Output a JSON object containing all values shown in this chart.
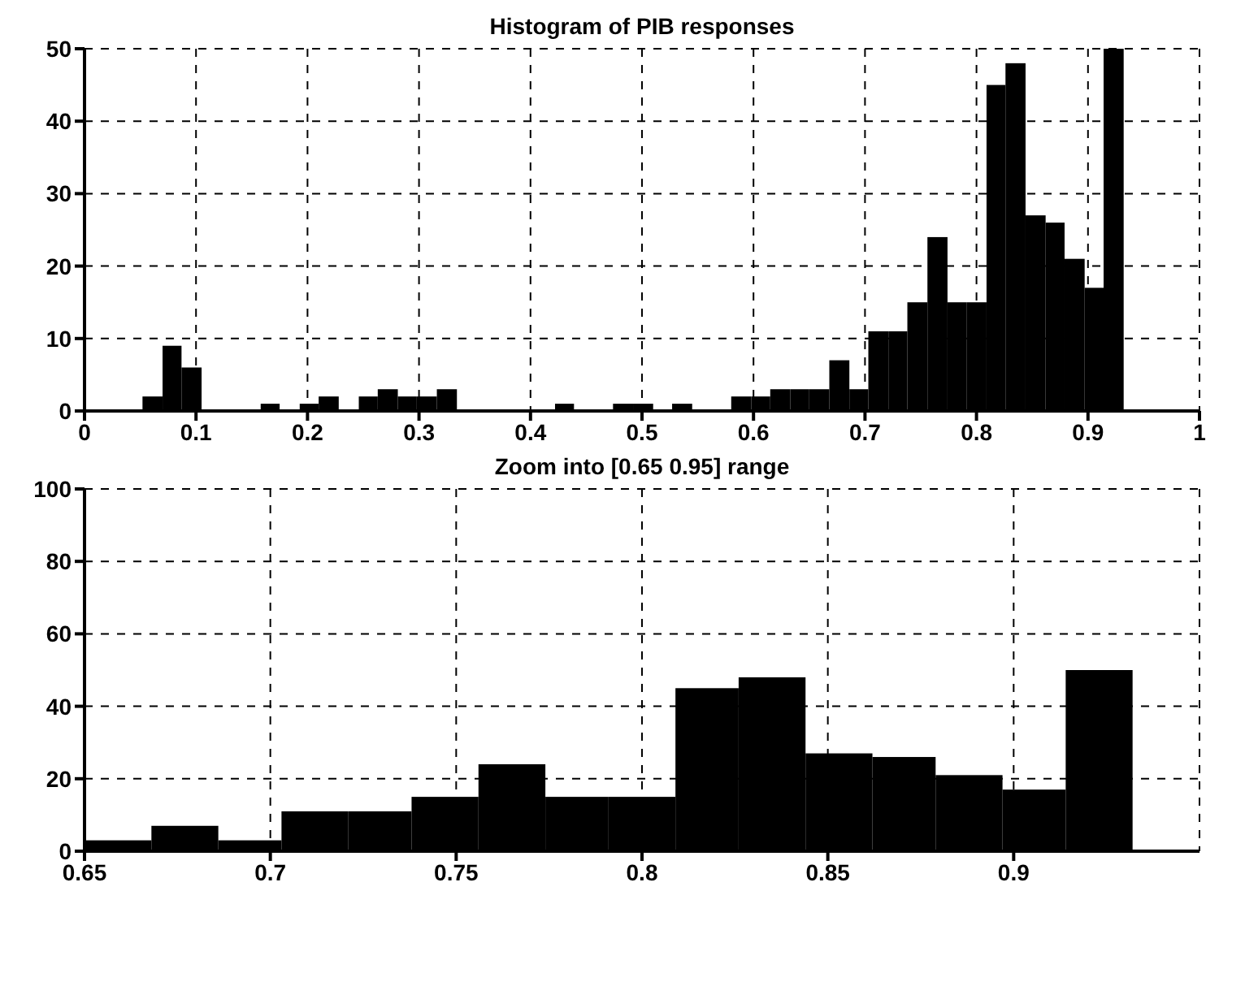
{
  "chart_data": [
    {
      "type": "histogram",
      "title": "Histogram of PIB responses",
      "bins": [
        0.052,
        0.07,
        0.087,
        0.105,
        0.158,
        0.175,
        0.193,
        0.21,
        0.228,
        0.246,
        0.263,
        0.281,
        0.298,
        0.316,
        0.334,
        0.422,
        0.439,
        0.474,
        0.492,
        0.51,
        0.527,
        0.545,
        0.58,
        0.598,
        0.615,
        0.633,
        0.65,
        0.668,
        0.686,
        0.703,
        0.721,
        0.738,
        0.756,
        0.774,
        0.791,
        0.809,
        0.826,
        0.844,
        0.862,
        0.879,
        0.897,
        0.914,
        0.932
      ],
      "values": [
        2,
        9,
        6,
        0,
        1,
        0,
        1,
        2,
        0,
        2,
        3,
        2,
        2,
        3,
        0,
        1,
        0,
        1,
        1,
        0,
        1,
        0,
        2,
        2,
        3,
        3,
        3,
        7,
        3,
        11,
        11,
        15,
        24,
        15,
        15,
        45,
        48,
        27,
        26,
        21,
        17,
        50
      ],
      "color": "#000000",
      "xlim": [
        0,
        1
      ],
      "xticks": [
        0,
        0.1,
        0.2,
        0.3,
        0.4,
        0.5,
        0.6,
        0.7,
        0.8,
        0.9,
        1
      ],
      "ylim": [
        0,
        50
      ],
      "yticks": [
        0,
        10,
        20,
        30,
        40,
        50
      ],
      "grid": true
    },
    {
      "type": "histogram",
      "title": "Zoom into [0.65 0.95] range",
      "bins": [
        0.65,
        0.668,
        0.686,
        0.703,
        0.721,
        0.738,
        0.756,
        0.774,
        0.791,
        0.809,
        0.826,
        0.844,
        0.862,
        0.879,
        0.897,
        0.914,
        0.932
      ],
      "values": [
        3,
        7,
        3,
        11,
        11,
        15,
        24,
        15,
        15,
        45,
        48,
        27,
        26,
        21,
        17,
        50
      ],
      "color": "#000000",
      "xlim": [
        0.65,
        0.95
      ],
      "xticks": [
        0.65,
        0.7,
        0.75,
        0.8,
        0.85,
        0.9
      ],
      "ylim": [
        0,
        100
      ],
      "yticks": [
        0,
        20,
        40,
        60,
        80,
        100
      ],
      "grid": true
    }
  ]
}
